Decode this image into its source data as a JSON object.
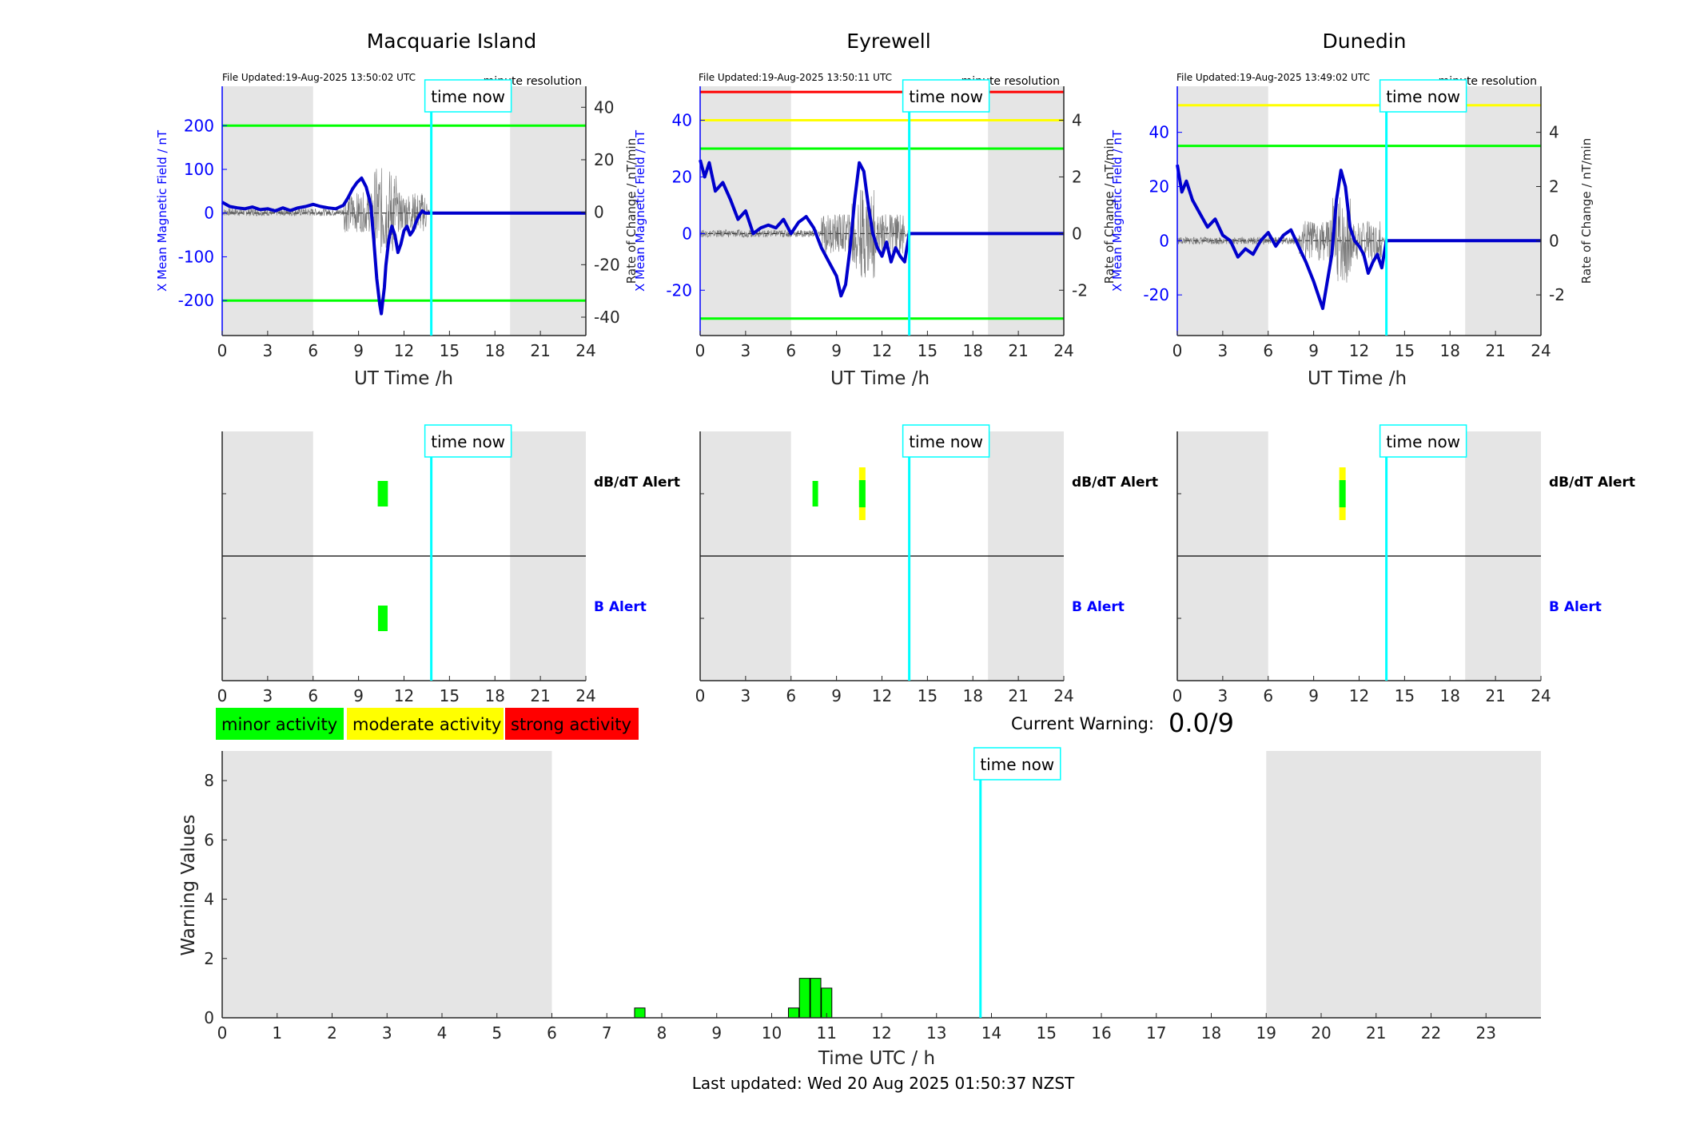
{
  "panels": [
    {
      "station": "Macquarie Island",
      "file_updated": "File Updated:19-Aug-2025 13:50:02 UTC",
      "resolution": "minute resolution",
      "ylabel_left": "X Mean Magnetic Field / nT",
      "ylabel_right": "Rate of Change / nT/min",
      "xlabel": "UT Time /h",
      "time_now_label": "time now",
      "y_ticks_left": [
        "200",
        "100",
        "0",
        "-100",
        "-200"
      ],
      "y_ticks_right": [
        "40",
        "20",
        "0",
        "-20",
        "-40"
      ],
      "x_ticks": [
        "0",
        "3",
        "6",
        "9",
        "12",
        "15",
        "18",
        "21",
        "24"
      ],
      "alert_dbdt_label": "dB/dT Alert",
      "alert_b_label": "B Alert"
    },
    {
      "station": "Eyrewell",
      "file_updated": "File Updated:19-Aug-2025 13:50:11 UTC",
      "resolution": "minute resolution",
      "ylabel_left": "X Mean Magnetic Field / nT",
      "ylabel_right": "Rate of Change / nT/min",
      "xlabel": "UT Time /h",
      "time_now_label": "time now",
      "y_ticks_left": [
        "40",
        "20",
        "0",
        "-20"
      ],
      "y_ticks_right": [
        "4",
        "2",
        "0",
        "-2"
      ],
      "x_ticks": [
        "0",
        "3",
        "6",
        "9",
        "12",
        "15",
        "18",
        "21",
        "24"
      ],
      "alert_dbdt_label": "dB/dT Alert",
      "alert_b_label": "B Alert"
    },
    {
      "station": "Dunedin",
      "file_updated": "File Updated:19-Aug-2025 13:49:02 UTC",
      "resolution": "minute resolution",
      "ylabel_left": "X Mean Magnetic Field / nT",
      "ylabel_right": "Rate of Change / nT/min",
      "xlabel": "UT Time /h",
      "time_now_label": "time now",
      "y_ticks_left": [
        "40",
        "20",
        "0",
        "-20"
      ],
      "y_ticks_right": [
        "4",
        "2",
        "0",
        "-2"
      ],
      "x_ticks": [
        "0",
        "3",
        "6",
        "9",
        "12",
        "15",
        "18",
        "21",
        "24"
      ],
      "alert_dbdt_label": "dB/dT Alert",
      "alert_b_label": "B Alert"
    }
  ],
  "legend": {
    "minor": "minor activity",
    "moderate": "moderate activity",
    "strong": "strong activity"
  },
  "current_warning": {
    "label": "Current Warning:",
    "value": "0.0/9"
  },
  "warning_chart": {
    "ylabel": "Warning Values",
    "xlabel": "Time UTC / h",
    "time_now_label": "time now",
    "y_ticks": [
      "0",
      "2",
      "4",
      "6",
      "8"
    ],
    "x_ticks": [
      "0",
      "1",
      "2",
      "3",
      "4",
      "5",
      "6",
      "7",
      "8",
      "9",
      "10",
      "11",
      "12",
      "13",
      "14",
      "15",
      "16",
      "17",
      "18",
      "19",
      "20",
      "21",
      "22",
      "23"
    ]
  },
  "footer": {
    "last_updated": "Last updated: Wed 20 Aug 2025 01:50:37 NZST"
  },
  "colors": {
    "minor": "#00ff00",
    "moderate": "#ffff00",
    "strong": "#ff0000",
    "time_now": "#00ffff",
    "field_line": "#0000cc",
    "night_shade": "#e5e5e5",
    "axis_blue": "#0000ff"
  },
  "chart_data": [
    {
      "type": "line",
      "title": "Macquarie Island",
      "xlabel": "UT Time /h",
      "ylabel": "X Mean Magnetic Field / nT",
      "y2label": "Rate of Change / nT/min",
      "xlim": [
        0,
        24
      ],
      "ylim": [
        -280,
        290
      ],
      "y2lim": [
        -47,
        48
      ],
      "night_shading_hours": [
        [
          0,
          6
        ],
        [
          19,
          24
        ]
      ],
      "time_now_hour": 13.8,
      "threshold_lines": [
        {
          "value": 200,
          "color": "#00ff00"
        },
        {
          "value": -200,
          "color": "#00ff00"
        }
      ],
      "series": [
        {
          "name": "X Mean Magnetic Field",
          "x": [
            0,
            0.5,
            1,
            1.5,
            2,
            2.5,
            3,
            3.5,
            4,
            4.5,
            5,
            5.5,
            6,
            6.5,
            7,
            7.5,
            8,
            8.3,
            8.6,
            8.9,
            9.2,
            9.5,
            9.8,
            10.0,
            10.2,
            10.4,
            10.5,
            10.6,
            10.7,
            10.8,
            11.0,
            11.2,
            11.4,
            11.6,
            11.8,
            12.0,
            12.2,
            12.4,
            12.6,
            12.8,
            13.0,
            13.2,
            13.4,
            13.6,
            13.8,
            15,
            18,
            21,
            24
          ],
          "y": [
            25,
            15,
            12,
            10,
            14,
            8,
            10,
            5,
            12,
            6,
            12,
            15,
            20,
            15,
            12,
            10,
            18,
            35,
            55,
            70,
            80,
            60,
            20,
            -60,
            -150,
            -210,
            -230,
            -200,
            -170,
            -120,
            -60,
            -30,
            -50,
            -90,
            -70,
            -40,
            -30,
            -50,
            -40,
            -20,
            -5,
            5,
            0,
            0,
            0,
            0,
            0,
            0,
            0
          ]
        }
      ]
    },
    {
      "type": "line",
      "title": "Eyrewell",
      "xlabel": "UT Time /h",
      "ylabel": "X Mean Magnetic Field / nT",
      "y2label": "Rate of Change / nT/min",
      "xlim": [
        0,
        24
      ],
      "ylim": [
        -36,
        52
      ],
      "y2lim": [
        -3.6,
        5.2
      ],
      "night_shading_hours": [
        [
          0,
          6
        ],
        [
          19,
          24
        ]
      ],
      "time_now_hour": 13.8,
      "threshold_lines": [
        {
          "value": 50,
          "color": "#ff0000"
        },
        {
          "value": 40,
          "color": "#ffff00"
        },
        {
          "value": 30,
          "color": "#00ff00"
        },
        {
          "value": -30,
          "color": "#00ff00"
        }
      ],
      "series": [
        {
          "name": "X Mean Magnetic Field",
          "x": [
            0,
            0.3,
            0.6,
            1.0,
            1.5,
            2.0,
            2.5,
            3.0,
            3.5,
            4.0,
            4.5,
            5.0,
            5.5,
            6.0,
            6.5,
            7.0,
            7.5,
            8.0,
            8.5,
            9.0,
            9.3,
            9.6,
            9.9,
            10.2,
            10.5,
            10.8,
            11.1,
            11.4,
            11.7,
            12.0,
            12.3,
            12.6,
            12.9,
            13.2,
            13.5,
            13.8,
            15,
            18,
            21,
            24
          ],
          "y": [
            26,
            20,
            25,
            15,
            18,
            12,
            5,
            8,
            0,
            2,
            3,
            2,
            5,
            0,
            4,
            6,
            2,
            -5,
            -10,
            -15,
            -22,
            -18,
            -5,
            12,
            25,
            22,
            10,
            0,
            -5,
            -8,
            -3,
            -10,
            -5,
            -8,
            -10,
            0,
            0,
            0,
            0,
            0
          ]
        }
      ]
    },
    {
      "type": "line",
      "title": "Dunedin",
      "xlabel": "UT Time /h",
      "ylabel": "X Mean Magnetic Field / nT",
      "y2label": "Rate of Change / nT/min",
      "xlim": [
        0,
        24
      ],
      "ylim": [
        -35,
        57
      ],
      "y2lim": [
        -3.5,
        5.7
      ],
      "night_shading_hours": [
        [
          0,
          6
        ],
        [
          19,
          24
        ]
      ],
      "time_now_hour": 13.8,
      "threshold_lines": [
        {
          "value": 50,
          "color": "#ffff00"
        },
        {
          "value": 35,
          "color": "#00ff00"
        }
      ],
      "series": [
        {
          "name": "X Mean Magnetic Field",
          "x": [
            0,
            0.3,
            0.6,
            1.0,
            1.5,
            2.0,
            2.5,
            3.0,
            3.5,
            4.0,
            4.5,
            5.0,
            5.5,
            6.0,
            6.5,
            7.0,
            7.5,
            8.0,
            8.5,
            9.0,
            9.3,
            9.6,
            9.9,
            10.2,
            10.5,
            10.8,
            11.1,
            11.4,
            11.7,
            12.0,
            12.3,
            12.6,
            12.9,
            13.2,
            13.5,
            13.8,
            15,
            18,
            21,
            24
          ],
          "y": [
            28,
            18,
            22,
            15,
            10,
            5,
            8,
            2,
            0,
            -6,
            -3,
            -5,
            0,
            3,
            -2,
            2,
            4,
            -2,
            -8,
            -15,
            -20,
            -25,
            -15,
            -5,
            15,
            26,
            20,
            5,
            0,
            -2,
            -5,
            -12,
            -8,
            -5,
            -10,
            0,
            0,
            0,
            0,
            0
          ]
        }
      ]
    },
    {
      "type": "bar",
      "title": "Warning Values",
      "xlabel": "Time UTC / h",
      "ylabel": "Warning Values",
      "xlim": [
        0,
        24
      ],
      "ylim": [
        0,
        9
      ],
      "night_shading_hours": [
        [
          0,
          6
        ],
        [
          19,
          24
        ]
      ],
      "time_now_hour": 13.8,
      "x": [
        7.6,
        10.4,
        10.6,
        10.8,
        11.0
      ],
      "values": [
        0.33,
        0.33,
        1.33,
        1.33,
        1.0
      ]
    }
  ],
  "alert_marks": [
    {
      "panel": 0,
      "row": "dbdt",
      "hours": [
        10.45,
        10.75
      ],
      "color": "#00ff00",
      "extent": "minor"
    },
    {
      "panel": 0,
      "row": "b",
      "hours": [
        10.6
      ],
      "color": "#00ff00",
      "extent": "minor"
    },
    {
      "panel": 1,
      "row": "dbdt",
      "hours": [
        7.6
      ],
      "color": "#00ff00",
      "extent": "minor"
    },
    {
      "panel": 1,
      "row": "dbdt",
      "hours": [
        10.7
      ],
      "color": "#ffff00",
      "extent": "moderate"
    },
    {
      "panel": 2,
      "row": "dbdt",
      "hours": [
        10.9
      ],
      "color": "#ffff00",
      "extent": "moderate"
    }
  ]
}
